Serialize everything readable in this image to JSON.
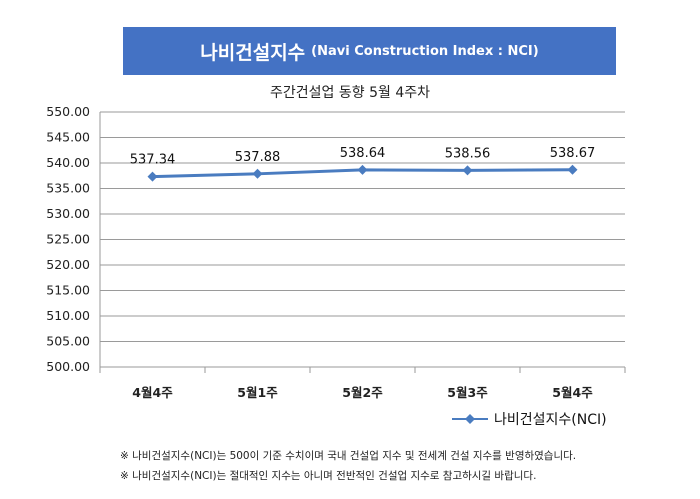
{
  "banner": {
    "title_ko": "나비건설지수",
    "title_en": "(Navi Construction Index : NCI)"
  },
  "subtitle": "주간건설업 동향 5월 4주차",
  "legend": {
    "label": "나비건설지수(NCI)"
  },
  "notes": [
    "※ 나비건설지수(NCI)는 500이 기준 수치이며 국내 건설업 지수 및 전세계 건설 지수를 반영하였습니다.",
    "※ 나비건설지수(NCI)는 절대적인 지수는 아니며 전반적인 건설업 지수로 참고하시길 바랍니다."
  ],
  "colors": {
    "banner": "#4472c4",
    "series": "#4a7cc0",
    "grid": "#9a9a9a"
  },
  "chart_data": {
    "type": "line",
    "title": "주간건설업 동향 5월 4주차",
    "categories": [
      "4월4주",
      "5월1주",
      "5월2주",
      "5월3주",
      "5월4주"
    ],
    "series": [
      {
        "name": "나비건설지수(NCI)",
        "values": [
          537.34,
          537.88,
          538.64,
          538.56,
          538.67
        ],
        "labels": [
          "537.34",
          "537.88",
          "538.64",
          "538.56",
          "538.67"
        ]
      }
    ],
    "ylim": [
      500,
      550
    ],
    "yticks": [
      "500.00",
      "505.00",
      "510.00",
      "515.00",
      "520.00",
      "525.00",
      "530.00",
      "535.00",
      "540.00",
      "545.00",
      "550.00"
    ],
    "grid": true,
    "legend_position": "bottom-right",
    "marker": "diamond"
  }
}
